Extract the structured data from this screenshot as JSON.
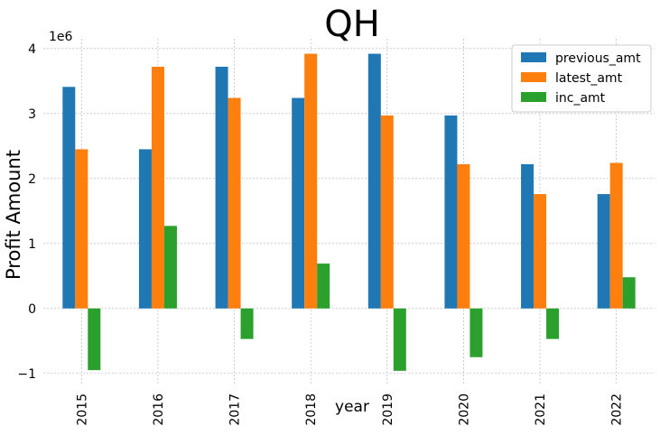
{
  "chart_data": {
    "type": "bar",
    "title": "QH",
    "xlabel": "year",
    "ylabel": "Profit Amount",
    "y_offset_label": "1e6",
    "categories": [
      "2015",
      "2016",
      "2017",
      "2018",
      "2019",
      "2020",
      "2021",
      "2022"
    ],
    "series": [
      {
        "name": "previous_amt",
        "color": "#1f77b4",
        "values": [
          3410000,
          2450000,
          3720000,
          3240000,
          3920000,
          2970000,
          2220000,
          1760000
        ]
      },
      {
        "name": "latest_amt",
        "color": "#ff7f0e",
        "values": [
          2450000,
          3720000,
          3240000,
          3920000,
          2970000,
          2220000,
          1760000,
          2240000
        ]
      },
      {
        "name": "inc_amt",
        "color": "#2ca02c",
        "values": [
          -950000,
          1270000,
          -470000,
          690000,
          -960000,
          -750000,
          -470000,
          480000
        ]
      }
    ],
    "ylim": [
      -1170000,
      4150000
    ],
    "yticks": [
      -1,
      0,
      1,
      2,
      3,
      4
    ],
    "ytick_labels": [
      "−1",
      "0",
      "1",
      "2",
      "3",
      "4"
    ],
    "grid": true,
    "legend_position": "upper right"
  }
}
